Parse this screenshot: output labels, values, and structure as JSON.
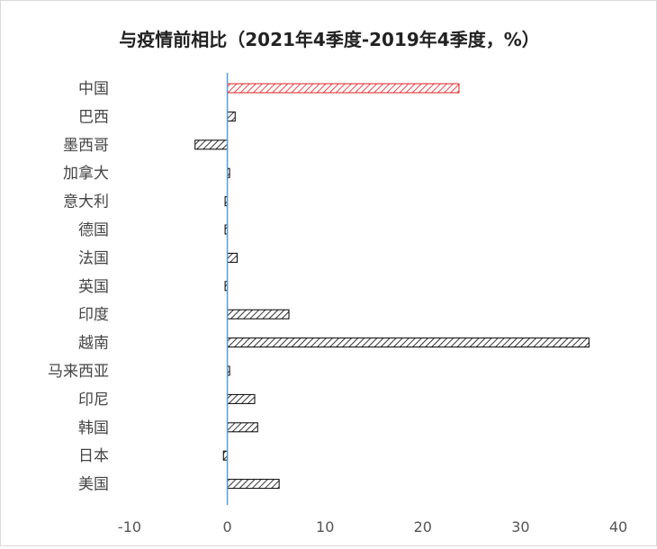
{
  "chart_data": {
    "type": "bar",
    "orientation": "horizontal",
    "title": "与疫情前相比（2021年4季度-2019年4季度，%）",
    "xlabel": "",
    "ylabel": "",
    "xlim": [
      -10,
      40
    ],
    "xticks": [
      "-10",
      "0",
      "10",
      "20",
      "30",
      "40"
    ],
    "grid": false,
    "legend": "none",
    "bar_pattern": "diagonal-hatch",
    "categories": [
      "中国",
      "巴西",
      "墨西哥",
      "加拿大",
      "意大利",
      "德国",
      "法国",
      "英国",
      "印度",
      "越南",
      "马来西亚",
      "印尼",
      "韩国",
      "日本",
      "美国"
    ],
    "values": [
      23.7,
      0.8,
      -3.3,
      0.2,
      -0.2,
      -0.1,
      1.0,
      -0.1,
      6.3,
      37.0,
      0.2,
      2.8,
      3.1,
      -0.4,
      5.3
    ],
    "highlight_category": "中国",
    "highlight_color": "#e02020",
    "bar_color": "#000000",
    "axis_color": "#5b9bd5"
  }
}
